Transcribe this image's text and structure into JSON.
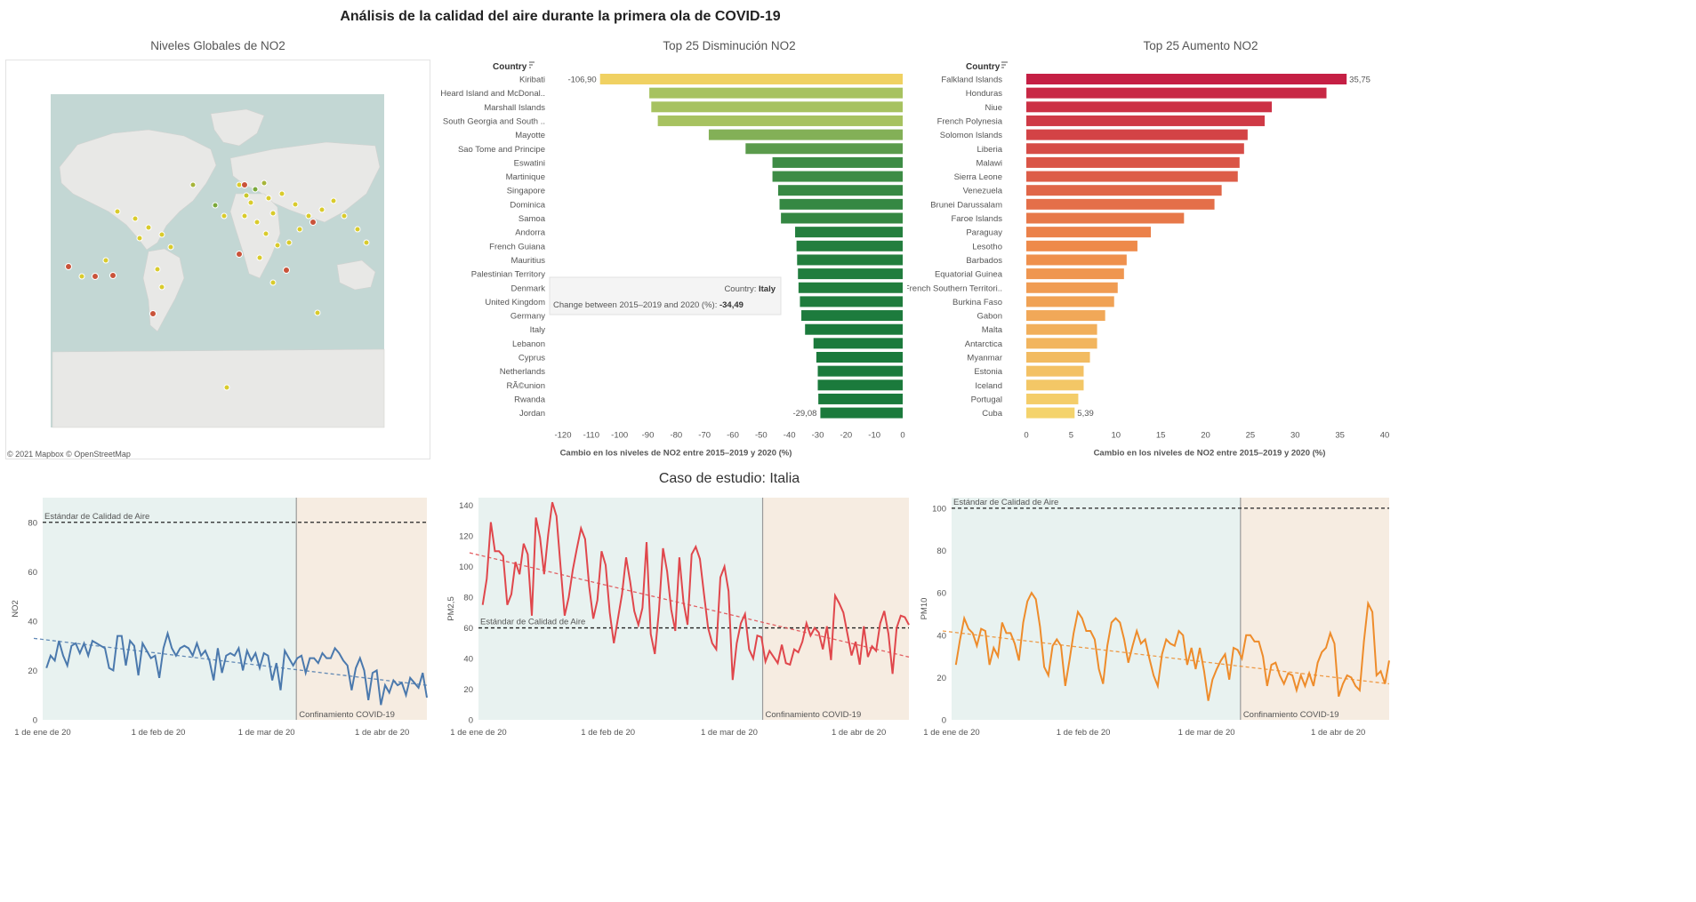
{
  "dashboard": {
    "title": "Análisis de la calidad del aire durante la primera ola de COVID-19",
    "map_title": "Niveles Globales de NO2",
    "map_attribution": "© 2021 Mapbox © OpenStreetMap",
    "decrease_title": "Top 25 Disminución NO2",
    "increase_title": "Top 25 Aumento NO2",
    "case_study_title": "Caso de estudio: Italia",
    "country_header": "Country",
    "axis_title": "Cambio en los niveles de NO2 entre 2015–2019 y 2020 (%)",
    "tooltip": {
      "country_label": "Country:",
      "country_value": "Italy",
      "change_label": "Change between 2015–2019 and 2020 (%):",
      "change_value": "-34,49"
    },
    "aq_standard_label": "Estándar de Calidad de Aire",
    "lockdown_label": "Confinamiento COVID-19",
    "colors": {
      "decrease_light": "#f0d162",
      "decrease_mid": "#a7c260",
      "decrease_dark": "#1b7a3c",
      "increase_dark": "#c51f44",
      "increase_light": "#f4d36c",
      "pre_period_bg": "#e8f2f0",
      "lockdown_bg": "#f6ece1",
      "no2_line": "#4b79ad",
      "pm25_line": "#e0474c",
      "pm10_line": "#ee8c2b"
    }
  },
  "chart_data": [
    {
      "type": "bar",
      "title": "Top 25 Disminución NO2",
      "orientation": "horizontal",
      "xlabel": "Cambio en los niveles de NO2 entre 2015–2019 y 2020 (%)",
      "xlim": [
        -120,
        0
      ],
      "xticks": [
        "-120",
        "-110",
        "-100",
        "-90",
        "-80",
        "-70",
        "-60",
        "-50",
        "-40",
        "-30",
        "-20",
        "-10",
        "0"
      ],
      "categories": [
        "Kiribati",
        "Heard Island and McDonal..",
        "Marshall Islands",
        "South Georgia and South ..",
        "Mayotte",
        "Sao Tome and Principe",
        "Eswatini",
        "Martinique",
        "Singapore",
        "Dominica",
        "Samoa",
        "Andorra",
        "French Guiana",
        "Mauritius",
        "Palestinian Territory",
        "Denmark",
        "United Kingdom",
        "Germany",
        "Italy",
        "Lebanon",
        "Cyprus",
        "Netherlands",
        "RÃ©union",
        "Rwanda",
        "Jordan"
      ],
      "values": [
        -106.9,
        -89.5,
        -88.8,
        -86.5,
        -68.5,
        -55.5,
        -46,
        -46,
        -44,
        -43.5,
        -43,
        -38,
        -37.5,
        -37.3,
        -37,
        -36.8,
        -36.3,
        -35.8,
        -34.49,
        -31.5,
        -30.5,
        -30,
        -30,
        -29.8,
        -29.08
      ],
      "data_labels": {
        "0": "-106,90",
        "24": "-29,08"
      }
    },
    {
      "type": "bar",
      "title": "Top 25 Aumento NO2",
      "orientation": "horizontal",
      "xlabel": "Cambio en los niveles de NO2 entre 2015–2019 y 2020 (%)",
      "xlim": [
        0,
        40
      ],
      "xticks": [
        "0",
        "5",
        "10",
        "15",
        "20",
        "25",
        "30",
        "35",
        "40"
      ],
      "categories": [
        "Falkland Islands",
        "Honduras",
        "Niue",
        "French Polynesia",
        "Solomon Islands",
        "Liberia",
        "Malawi",
        "Sierra Leone",
        "Venezuela",
        "Brunei Darussalam",
        "Faroe Islands",
        "Paraguay",
        "Lesotho",
        "Barbados",
        "Equatorial Guinea",
        "French Southern Territori..",
        "Burkina Faso",
        "Gabon",
        "Malta",
        "Antarctica",
        "Myanmar",
        "Estonia",
        "Iceland",
        "Portugal",
        "Cuba"
      ],
      "values": [
        35.75,
        33.5,
        27.4,
        26.6,
        24.7,
        24.3,
        23.8,
        23.6,
        21.8,
        21,
        17.6,
        13.9,
        12.4,
        11.2,
        10.9,
        10.2,
        9.8,
        8.8,
        7.9,
        7.9,
        7.1,
        6.4,
        6.4,
        5.8,
        5.39
      ],
      "data_labels": {
        "0": "35,75",
        "24": "5,39"
      }
    },
    {
      "type": "line",
      "title": "NO2",
      "ylabel": "NO2",
      "ylim": [
        0,
        90
      ],
      "yticks": [
        "0",
        "20",
        "40",
        "60",
        "80"
      ],
      "xticks": [
        "1 de ene de 20",
        "1 de feb de 20",
        "1 de mar de 20",
        "1 de abr de 20"
      ],
      "x_range_days": [
        1,
        104
      ],
      "lockdown_day": 69,
      "standard": 80,
      "trend": [
        33,
        14
      ],
      "values": [
        21,
        26,
        24,
        32,
        26,
        22,
        30,
        31,
        27,
        31,
        26,
        32,
        31,
        30,
        29,
        21,
        20,
        34,
        34,
        22,
        32,
        30,
        18,
        31,
        28,
        25,
        26,
        17,
        29,
        35,
        29,
        26,
        29,
        30,
        29,
        26,
        31,
        26,
        28,
        24,
        16,
        29,
        19,
        26,
        27,
        26,
        29,
        20,
        28,
        24,
        27,
        21,
        27,
        26,
        16,
        23,
        12,
        28,
        25,
        22,
        25,
        26,
        19,
        25,
        25,
        23,
        27,
        25,
        25,
        29,
        27,
        24,
        22,
        12,
        21,
        25,
        20,
        8,
        19,
        20,
        6,
        14,
        11,
        16,
        14,
        15,
        10,
        17,
        15,
        13,
        19,
        9
      ]
    },
    {
      "type": "line",
      "title": "PM2,5",
      "ylabel": "PM2,5",
      "ylim": [
        0,
        145
      ],
      "yticks": [
        "0",
        "20",
        "40",
        "60",
        "80",
        "100",
        "120",
        "140"
      ],
      "xticks": [
        "1 de ene de 20",
        "1 de feb de 20",
        "1 de mar de 20",
        "1 de abr de 20"
      ],
      "x_range_days": [
        1,
        104
      ],
      "lockdown_day": 69,
      "standard": 60,
      "trend": [
        109,
        41
      ],
      "values": [
        75,
        92,
        129,
        110,
        110,
        107,
        75,
        82,
        103,
        95,
        115,
        108,
        68,
        132,
        119,
        95,
        121,
        142,
        133,
        100,
        68,
        80,
        98,
        112,
        125,
        118,
        87,
        66,
        78,
        110,
        101,
        70,
        50,
        66,
        82,
        106,
        90,
        71,
        62,
        73,
        116,
        56,
        43,
        71,
        112,
        97,
        72,
        58,
        106,
        77,
        62,
        108,
        113,
        105,
        82,
        60,
        50,
        46,
        93,
        100,
        84,
        26,
        50,
        63,
        69,
        46,
        40,
        55,
        54,
        38,
        45,
        41,
        37,
        49,
        37,
        36,
        46,
        44,
        51,
        63,
        55,
        60,
        57,
        46,
        61,
        39,
        81,
        76,
        70,
        56,
        42,
        51,
        36,
        61,
        41,
        48,
        45,
        63,
        71,
        56,
        30,
        60,
        68,
        67,
        62
      ]
    },
    {
      "type": "line",
      "title": "PM10",
      "ylabel": "PM10",
      "ylim": [
        0,
        105
      ],
      "yticks": [
        "0",
        "20",
        "40",
        "60",
        "80",
        "100"
      ],
      "xticks": [
        "1 de ene de 20",
        "1 de feb de 20",
        "1 de mar de 20",
        "1 de abr de 20"
      ],
      "x_range_days": [
        1,
        104
      ],
      "lockdown_day": 69,
      "standard": 100,
      "trend": [
        42,
        17
      ],
      "values": [
        26,
        38,
        48,
        43,
        41,
        35,
        43,
        42,
        26,
        34,
        30,
        46,
        41,
        41,
        36,
        28,
        46,
        56,
        60,
        57,
        44,
        25,
        21,
        35,
        38,
        35,
        16,
        28,
        41,
        51,
        48,
        42,
        42,
        38,
        24,
        17,
        35,
        46,
        48,
        46,
        38,
        27,
        35,
        42,
        36,
        38,
        29,
        21,
        16,
        31,
        38,
        36,
        35,
        42,
        40,
        26,
        34,
        24,
        34,
        23,
        9,
        19,
        24,
        28,
        31,
        19,
        34,
        33,
        29,
        40,
        40,
        37,
        37,
        30,
        16,
        26,
        27,
        21,
        17,
        22,
        21,
        14,
        21,
        16,
        22,
        16,
        27,
        32,
        34,
        41,
        36,
        11,
        17,
        21,
        20,
        16,
        14,
        37,
        55,
        51,
        21,
        23,
        17,
        28
      ]
    }
  ]
}
